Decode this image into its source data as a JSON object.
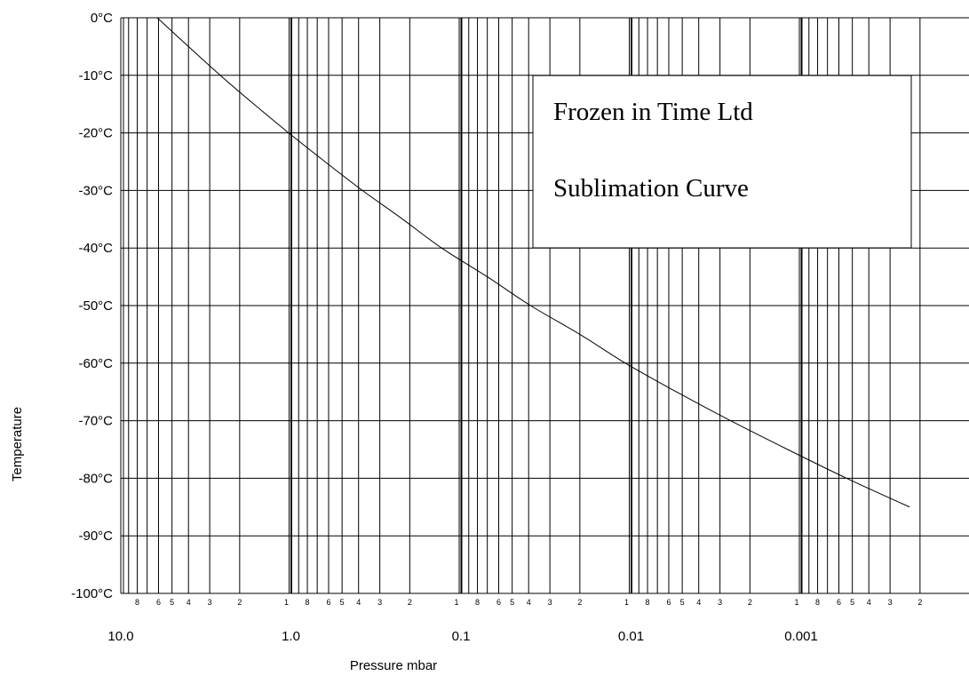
{
  "chart_data": {
    "type": "line",
    "xlabel": "Pressure mbar",
    "ylabel": "Temperature",
    "x_scale": "log",
    "x_reversed": true,
    "xlim": [
      10.0,
      0.0002
    ],
    "ylim": [
      -100,
      0
    ],
    "grid": true,
    "y_ticks": [
      "0°C",
      "-10°C",
      "-20°C",
      "-30°C",
      "-40°C",
      "-50°C",
      "-60°C",
      "-70°C",
      "-80°C",
      "-90°C",
      "-100°C"
    ],
    "y_tick_values": [
      0,
      -10,
      -20,
      -30,
      -40,
      -50,
      -60,
      -70,
      -80,
      -90,
      -100
    ],
    "x_major_ticks": [
      "10.0",
      "1.0",
      "0.1",
      "0.01",
      "0.001"
    ],
    "x_major_values": [
      10,
      1,
      0.1,
      0.01,
      0.001
    ],
    "x_minor_tick_labels": [
      "8",
      "6",
      "5",
      "4",
      "3",
      "2",
      "1"
    ],
    "annotation_box": {
      "line1": "Frozen in Time Ltd",
      "line2": "Sublimation Curve"
    },
    "series": [
      {
        "x": [
          6.11,
          4.0,
          2.6,
          1.65,
          1.03,
          0.63,
          0.38,
          0.22,
          0.13,
          0.07,
          0.039,
          0.02,
          0.0108,
          0.0054,
          0.0026,
          0.0012,
          0.00054,
          0.00023
        ],
        "y": [
          0,
          -5,
          -10,
          -15,
          -20,
          -25,
          -30,
          -35,
          -40,
          -45,
          -50,
          -55,
          -60,
          -65,
          -70,
          -75,
          -80,
          -85
        ]
      }
    ]
  }
}
